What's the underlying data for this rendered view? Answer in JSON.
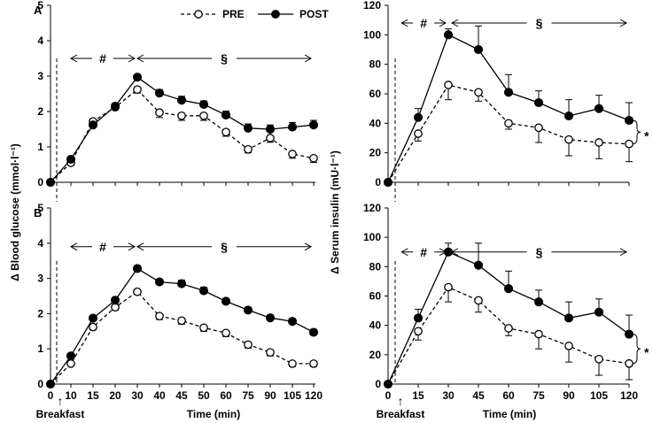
{
  "colors": {
    "axis": "#000000",
    "pre_fill": "#ffffff",
    "post_fill": "#000000"
  },
  "chart_data": [
    {
      "id": "glucose-A",
      "type": "line",
      "panel_letter": "A",
      "x": [
        0,
        10,
        15,
        20,
        30,
        40,
        45,
        50,
        60,
        75,
        90,
        105,
        120
      ],
      "ylim": [
        0,
        5
      ],
      "yticks": [
        "0",
        "1",
        "2",
        "3",
        "4",
        "5"
      ],
      "xticks": [],
      "series": [
        {
          "name": "PRE",
          "style": "dashed-open",
          "values": [
            0,
            0.55,
            1.72,
            2.12,
            2.62,
            1.97,
            1.88,
            1.88,
            1.42,
            0.93,
            1.25,
            0.8,
            0.68
          ],
          "err": [
            0,
            0.06,
            0.07,
            0.07,
            0.1,
            0.14,
            0.13,
            0.13,
            0.12,
            0.1,
            0.12,
            0.12,
            0.12
          ]
        },
        {
          "name": "POST",
          "style": "solid-filled",
          "values": [
            0,
            0.65,
            1.62,
            2.15,
            2.97,
            2.52,
            2.32,
            2.2,
            1.9,
            1.53,
            1.5,
            1.56,
            1.62
          ],
          "err": [
            0,
            0.06,
            0.07,
            0.07,
            0.07,
            0.1,
            0.11,
            0.1,
            0.11,
            0.12,
            0.12,
            0.13,
            0.13
          ]
        }
      ],
      "annotations": {
        "hash": {
          "label": "#",
          "from": 10,
          "to": 30,
          "y": 3.5
        },
        "section": {
          "label": "§",
          "from": 30,
          "to": 120,
          "y": 3.5
        }
      }
    },
    {
      "id": "glucose-B",
      "type": "line",
      "panel_letter": "B",
      "x": [
        0,
        10,
        15,
        20,
        30,
        40,
        45,
        50,
        60,
        75,
        90,
        105,
        120
      ],
      "ylim": [
        0,
        5
      ],
      "yticks": [
        "0",
        "1",
        "2",
        "3",
        "4",
        "5"
      ],
      "xticks": [
        "0",
        "10",
        "15",
        "20",
        "30",
        "40",
        "45",
        "50",
        "60",
        "75",
        "90",
        "105",
        "120"
      ],
      "series": [
        {
          "name": "PRE",
          "style": "dashed-open",
          "values": [
            0,
            0.58,
            1.62,
            2.18,
            2.62,
            1.93,
            1.8,
            1.6,
            1.45,
            1.12,
            0.9,
            0.58,
            0.58
          ],
          "err": [
            0,
            0.06,
            0.08,
            0.08,
            0.08,
            0.1,
            0.1,
            0.1,
            0.1,
            0.1,
            0.1,
            0.08,
            0.08
          ]
        },
        {
          "name": "POST",
          "style": "solid-filled",
          "values": [
            0,
            0.8,
            1.87,
            2.38,
            3.28,
            2.9,
            2.85,
            2.65,
            2.35,
            2.1,
            1.88,
            1.78,
            1.47
          ],
          "err": [
            0,
            0.06,
            0.08,
            0.08,
            0.08,
            0.08,
            0.1,
            0.1,
            0.08,
            0.08,
            0.08,
            0.08,
            0.08
          ]
        }
      ],
      "annotations": {
        "hash": {
          "label": "#",
          "from": 10,
          "to": 30,
          "y": 3.9
        },
        "section": {
          "label": "§",
          "from": 30,
          "to": 120,
          "y": 3.9
        }
      }
    },
    {
      "id": "insulin-top",
      "type": "line",
      "x": [
        0,
        15,
        30,
        45,
        60,
        75,
        90,
        105,
        120
      ],
      "ylim": [
        0,
        120
      ],
      "yticks": [
        "0",
        "20",
        "40",
        "60",
        "80",
        "100",
        "120"
      ],
      "xticks": [],
      "series": [
        {
          "name": "PRE",
          "style": "dashed-open",
          "values": [
            0,
            33,
            66,
            61,
            40,
            37,
            29,
            27,
            26
          ],
          "err": [
            0,
            5,
            10,
            6,
            4,
            10,
            11,
            11,
            12
          ]
        },
        {
          "name": "POST",
          "style": "solid-filled",
          "values": [
            0,
            44,
            100,
            90,
            61,
            54,
            45,
            50,
            42
          ],
          "err": [
            0,
            6,
            4,
            16,
            12,
            8,
            11,
            9,
            12
          ]
        }
      ],
      "annotations": {
        "hash": {
          "label": "#",
          "from": 5,
          "to": 30,
          "y": 108
        },
        "section": {
          "label": "§",
          "from": 30,
          "to": 120,
          "y": 108
        },
        "star": "*"
      }
    },
    {
      "id": "insulin-bottom",
      "type": "line",
      "x": [
        0,
        15,
        30,
        45,
        60,
        75,
        90,
        105,
        120
      ],
      "ylim": [
        0,
        120
      ],
      "yticks": [
        "0",
        "20",
        "40",
        "60",
        "80",
        "100",
        "120"
      ],
      "xticks": [
        "0",
        "15",
        "30",
        "45",
        "60",
        "75",
        "90",
        "105",
        "120"
      ],
      "series": [
        {
          "name": "PRE",
          "style": "dashed-open",
          "values": [
            0,
            36,
            66,
            57,
            38,
            34,
            26,
            17,
            14
          ],
          "err": [
            0,
            6,
            10,
            8,
            5,
            10,
            11,
            11,
            11
          ]
        },
        {
          "name": "POST",
          "style": "solid-filled",
          "values": [
            0,
            45,
            90,
            81,
            65,
            56,
            45,
            49,
            34
          ],
          "err": [
            0,
            6,
            6,
            15,
            12,
            8,
            11,
            9,
            13
          ]
        }
      ],
      "annotations": {
        "hash": {
          "label": "#",
          "from": 5,
          "to": 30,
          "y": 90
        },
        "section": {
          "label": "§",
          "from": 30,
          "to": 120,
          "y": 90
        },
        "star": "*"
      }
    }
  ],
  "labels": {
    "left_ylabel": "Δ Blood glucose  (mmol·l⁻¹)",
    "right_ylabel": "Δ Serum insulin  (mU·l⁻¹)",
    "xlabel": "Time (min)",
    "breakfast": "Breakfast",
    "arrow_up": "↑",
    "legend_pre": "PRE",
    "legend_post": "POST"
  }
}
